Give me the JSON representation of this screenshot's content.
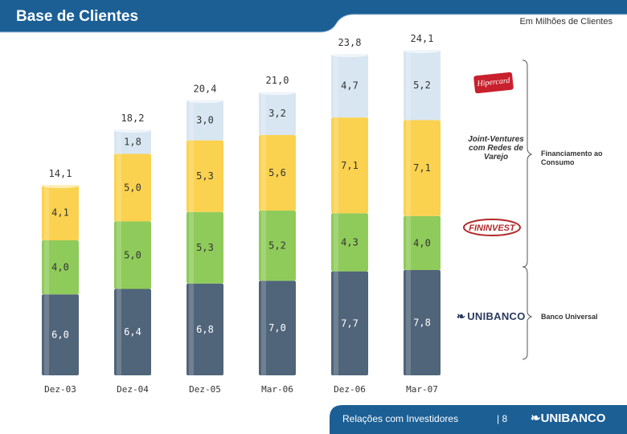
{
  "header": {
    "title": "Base de Clientes",
    "units": "Em Milhões de Clientes"
  },
  "colors": {
    "header_bg": "#1b5f95",
    "bottom_segment": "#50647a",
    "middle_segment": "#8fcb5a",
    "upper_segment": "#fbd24f",
    "top_segment": "#d8e6f2",
    "footer_bg": "#1b5f95"
  },
  "chart_data": {
    "type": "bar",
    "stacked": true,
    "categories": [
      "Dez-03",
      "Dez-04",
      "Dez-05",
      "Mar-06",
      "Dez-06",
      "Mar-07"
    ],
    "series": [
      {
        "values": [
          6.0,
          6.4,
          6.8,
          7.0,
          7.7,
          7.8
        ],
        "labels": [
          "6,0",
          "6,4",
          "6,8",
          "7,0",
          "7,7",
          "7,8"
        ]
      },
      {
        "values": [
          4.0,
          5.0,
          5.3,
          5.2,
          4.3,
          4.0
        ],
        "labels": [
          "4,0",
          "5,0",
          "5,3",
          "5,2",
          "4,3",
          "4,0"
        ]
      },
      {
        "values": [
          4.1,
          5.0,
          5.3,
          5.6,
          7.1,
          7.1
        ],
        "labels": [
          "4,1",
          "5,0",
          "5,3",
          "5,6",
          "7,1",
          "7,1"
        ]
      },
      {
        "values": [
          0,
          1.8,
          3.0,
          3.2,
          4.7,
          5.2
        ],
        "labels": [
          "",
          "1,8",
          "3,0",
          "3,2",
          "4,7",
          "5,2"
        ]
      }
    ],
    "totals": [
      14.1,
      18.2,
      20.4,
      21.0,
      23.8,
      24.1
    ],
    "total_labels": [
      "14,1",
      "18,2",
      "20,4",
      "21,0",
      "23,8",
      "24,1"
    ],
    "ylim": [
      0,
      25
    ],
    "grid": false
  },
  "legend": {
    "jv_label": "Joint-Ventures com Redes de Varejo",
    "financiamento_label": "Financiamento ao Consumo",
    "banco_label": "Banco Universal",
    "hipercard": "Hipercard",
    "fininvest": "FININVEST",
    "unibanco": "UNIBANCO"
  },
  "footer": {
    "text": "Relações com Investidores",
    "page": "| 8",
    "brand": "UNIBANCO"
  }
}
